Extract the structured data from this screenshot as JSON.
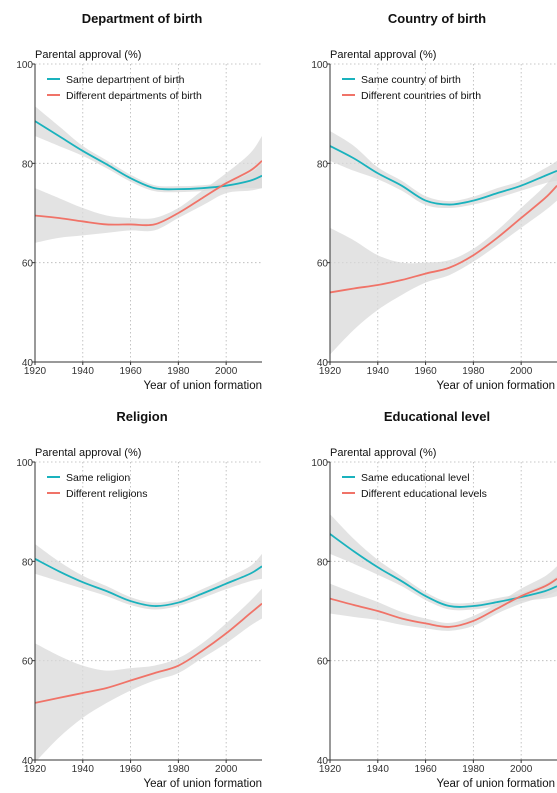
{
  "colors": {
    "same": "#1ab2bd",
    "different": "#f07368",
    "band": "#d9d9d9",
    "grid": "#b5b5b5",
    "axis": "#333333"
  },
  "chart_data": [
    {
      "type": "line",
      "title": "Department of birth",
      "ylabel": "Parental approval (%)",
      "xlabel": "Year of union formation",
      "xlim": [
        1920,
        2015
      ],
      "ylim": [
        40,
        100
      ],
      "xticks": [
        "1920",
        "1940",
        "1960",
        "1980",
        "2000"
      ],
      "yticks": [
        "40",
        "60",
        "80",
        "100"
      ],
      "grid": true,
      "legend": "top-left",
      "x": [
        1920,
        1930,
        1940,
        1950,
        1960,
        1970,
        1980,
        1990,
        2000,
        2010,
        2015
      ],
      "series": [
        {
          "name": "Same department of birth",
          "color": "#1ab2bd",
          "values": [
            88.5,
            85.5,
            82.5,
            79.8,
            77.0,
            75.0,
            74.8,
            75.0,
            75.5,
            76.5,
            77.5
          ],
          "ci_low": [
            85.5,
            83.5,
            81.5,
            79.0,
            76.3,
            74.4,
            74.2,
            74.4,
            74.8,
            75.0,
            75.0
          ],
          "ci_high": [
            91.5,
            87.5,
            83.5,
            80.6,
            77.7,
            75.6,
            75.4,
            75.6,
            76.2,
            78.0,
            80.0
          ]
        },
        {
          "name": "Different departments of birth",
          "color": "#f07368",
          "values": [
            69.5,
            69.0,
            68.3,
            67.7,
            67.7,
            67.7,
            70.0,
            73.0,
            76.0,
            78.5,
            80.5
          ],
          "ci_low": [
            64.0,
            65.0,
            65.5,
            66.0,
            66.5,
            66.5,
            69.0,
            71.5,
            74.0,
            74.5,
            75.0
          ],
          "ci_high": [
            75.0,
            73.0,
            71.0,
            69.5,
            69.0,
            69.0,
            71.0,
            74.5,
            78.0,
            82.0,
            85.5
          ]
        }
      ]
    },
    {
      "type": "line",
      "title": "Country of birth",
      "ylabel": "Parental approval (%)",
      "xlabel": "Year of union formation",
      "xlim": [
        1920,
        2015
      ],
      "ylim": [
        40,
        100
      ],
      "xticks": [
        "1920",
        "1940",
        "1960",
        "1980",
        "2000"
      ],
      "yticks": [
        "40",
        "60",
        "80",
        "100"
      ],
      "grid": true,
      "legend": "top-left",
      "x": [
        1920,
        1930,
        1940,
        1950,
        1960,
        1970,
        1980,
        1990,
        2000,
        2010,
        2015
      ],
      "series": [
        {
          "name": "Same country of birth",
          "color": "#1ab2bd",
          "values": [
            83.5,
            81.0,
            78.0,
            75.5,
            72.5,
            71.7,
            72.5,
            74.0,
            75.5,
            77.5,
            78.5
          ],
          "ci_low": [
            80.5,
            78.5,
            76.8,
            74.5,
            71.6,
            71.0,
            71.7,
            73.0,
            74.5,
            76.0,
            76.5
          ],
          "ci_high": [
            86.5,
            83.5,
            79.2,
            76.5,
            73.4,
            72.4,
            73.3,
            75.0,
            76.5,
            79.0,
            80.5
          ]
        },
        {
          "name": "Different countries of birth",
          "color": "#f07368",
          "values": [
            54.0,
            54.8,
            55.5,
            56.5,
            57.8,
            59.0,
            61.5,
            65.0,
            69.0,
            73.0,
            75.5
          ],
          "ci_low": [
            41.5,
            46.5,
            50.5,
            53.5,
            56.0,
            57.5,
            60.2,
            63.5,
            67.0,
            70.5,
            72.5
          ],
          "ci_high": [
            67.0,
            64.5,
            61.5,
            60.0,
            60.0,
            60.5,
            62.8,
            66.5,
            71.0,
            75.5,
            78.5
          ]
        }
      ]
    },
    {
      "type": "line",
      "title": "Religion",
      "ylabel": "Parental approval (%)",
      "xlabel": "Year of union formation",
      "xlim": [
        1920,
        2015
      ],
      "ylim": [
        40,
        100
      ],
      "xticks": [
        "1920",
        "1940",
        "1960",
        "1980",
        "2000"
      ],
      "yticks": [
        "40",
        "60",
        "80",
        "100"
      ],
      "grid": true,
      "legend": "top-left",
      "x": [
        1920,
        1930,
        1940,
        1950,
        1960,
        1970,
        1980,
        1990,
        2000,
        2010,
        2015
      ],
      "series": [
        {
          "name": "Same religion",
          "color": "#1ab2bd",
          "values": [
            80.5,
            78.0,
            75.8,
            74.0,
            72.0,
            71.0,
            71.7,
            73.5,
            75.5,
            77.5,
            79.0
          ],
          "ci_low": [
            77.5,
            76.0,
            74.5,
            73.0,
            71.2,
            70.3,
            71.0,
            72.6,
            74.4,
            76.0,
            76.5
          ],
          "ci_high": [
            83.5,
            80.0,
            77.1,
            75.0,
            72.8,
            71.7,
            72.4,
            74.4,
            76.6,
            79.0,
            81.5
          ]
        },
        {
          "name": "Different religions",
          "color": "#f07368",
          "values": [
            51.5,
            52.5,
            53.5,
            54.5,
            56.0,
            57.5,
            59.0,
            62.0,
            65.5,
            69.5,
            71.5
          ],
          "ci_low": [
            39.5,
            44.5,
            48.5,
            51.5,
            54.0,
            56.0,
            57.5,
            60.5,
            63.5,
            67.0,
            68.5
          ],
          "ci_high": [
            63.5,
            61.0,
            59.0,
            58.0,
            58.5,
            59.0,
            60.5,
            63.5,
            67.5,
            72.0,
            74.5
          ]
        }
      ]
    },
    {
      "type": "line",
      "title": "Educational level",
      "ylabel": "Parental approval (%)",
      "xlabel": "Year of union formation",
      "xlim": [
        1920,
        2015
      ],
      "ylim": [
        40,
        100
      ],
      "xticks": [
        "1920",
        "1940",
        "1960",
        "1980",
        "2000"
      ],
      "yticks": [
        "40",
        "60",
        "80",
        "100"
      ],
      "grid": true,
      "legend": "top-left",
      "x": [
        1920,
        1930,
        1940,
        1950,
        1960,
        1970,
        1980,
        1990,
        2000,
        2010,
        2015
      ],
      "series": [
        {
          "name": "Same educational level",
          "color": "#1ab2bd",
          "values": [
            85.5,
            82.0,
            78.8,
            76.0,
            73.0,
            71.0,
            71.0,
            71.8,
            72.8,
            74.0,
            75.0
          ],
          "ci_low": [
            81.5,
            79.5,
            77.3,
            75.0,
            72.2,
            70.3,
            70.3,
            71.0,
            72.0,
            72.5,
            73.0
          ],
          "ci_high": [
            89.5,
            84.5,
            80.3,
            77.0,
            73.8,
            71.7,
            71.7,
            72.6,
            73.6,
            75.5,
            77.0
          ]
        },
        {
          "name": "Different educational levels",
          "color": "#f07368",
          "values": [
            72.5,
            71.2,
            70.0,
            68.5,
            67.5,
            66.8,
            68.0,
            70.5,
            73.0,
            75.0,
            76.5
          ],
          "ci_low": [
            69.5,
            68.8,
            68.2,
            67.2,
            66.5,
            66.0,
            67.0,
            69.5,
            71.5,
            73.0,
            74.0
          ],
          "ci_high": [
            75.5,
            73.6,
            71.8,
            69.8,
            68.5,
            67.6,
            69.0,
            71.5,
            74.5,
            77.0,
            79.0
          ]
        }
      ]
    }
  ]
}
